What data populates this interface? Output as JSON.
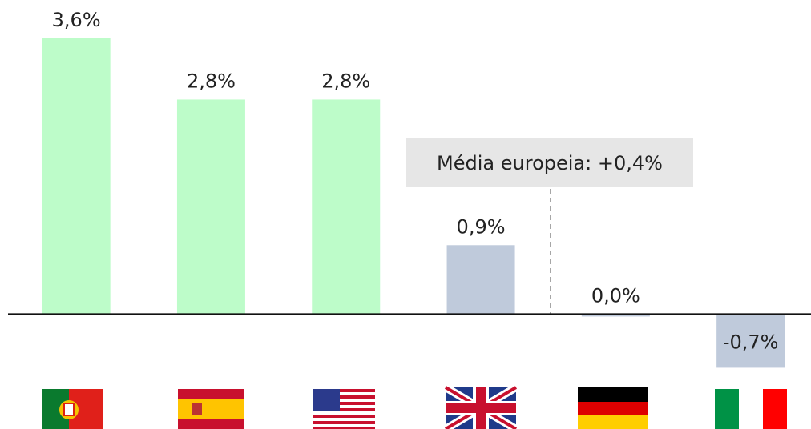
{
  "chart_data": {
    "type": "bar",
    "categories": [
      null,
      null,
      null,
      null,
      null,
      null
    ],
    "values": [
      3.6,
      2.8,
      2.8,
      0.9,
      0.0,
      -0.7
    ],
    "value_labels": [
      "3,6%",
      "2,8%",
      "2,8%",
      "0,9%",
      "0,0%",
      "-0,7%"
    ],
    "colors": [
      "#bdfcc9",
      "#bdfcc9",
      "#bdfcc9",
      "#bfcadb",
      "#bfcadb",
      "#bfcadb"
    ],
    "ylim": [
      -1.5,
      4.1
    ],
    "annotation": "Média europeia: +0,4%"
  }
}
